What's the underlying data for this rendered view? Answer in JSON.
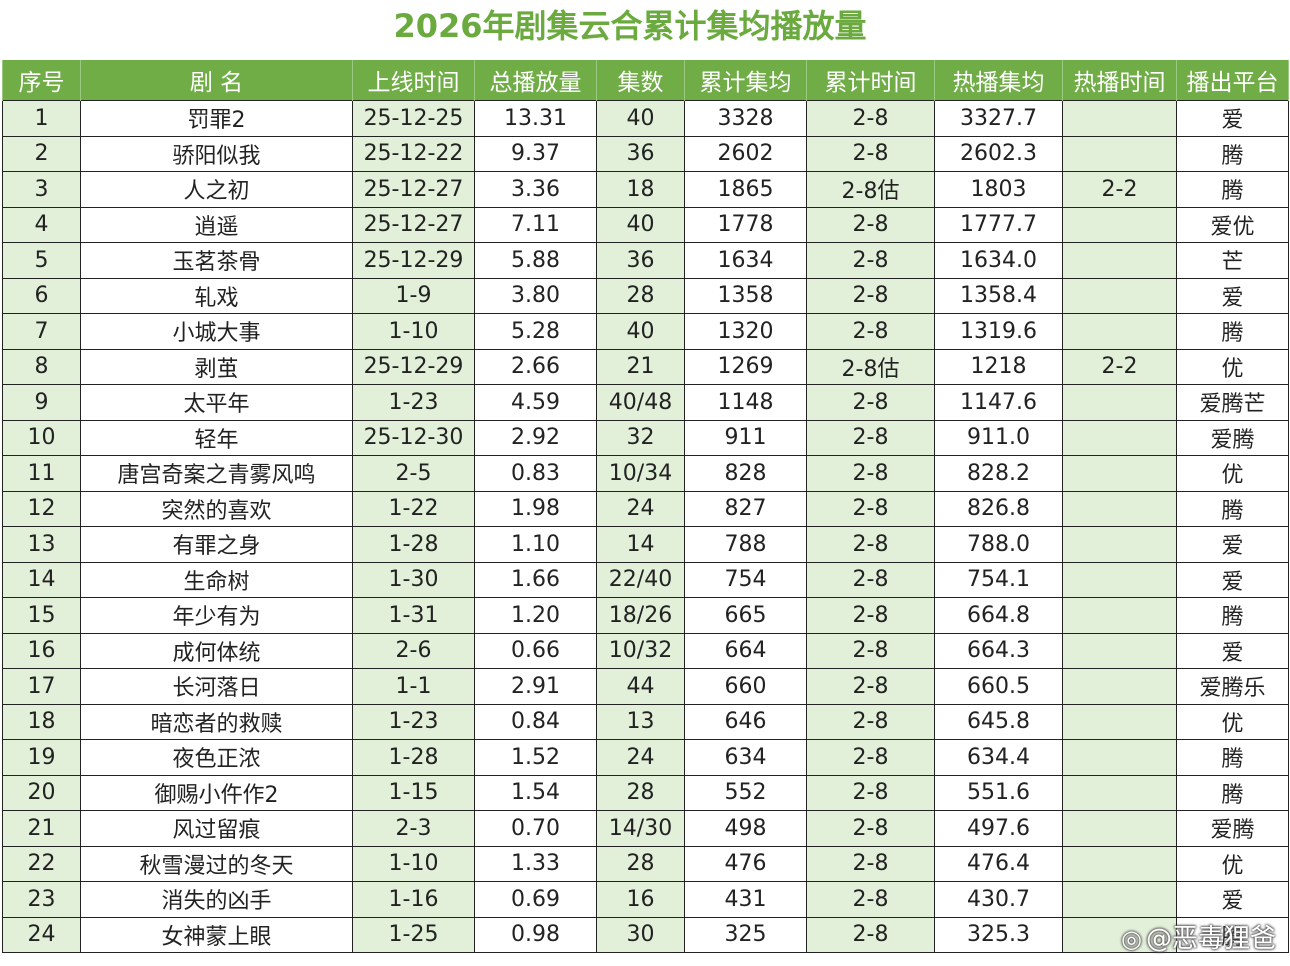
{
  "title": "2026年剧集云合累计集均播放量",
  "headers": [
    "序号",
    "剧 名",
    "上线时间",
    "总播放量",
    "集数",
    "累计集均",
    "累计时间",
    "热播集均",
    "热播时间",
    "播出平台"
  ],
  "rows": [
    [
      "1",
      "罚罪2",
      "25-12-25",
      "13.31",
      "40",
      "3328",
      "2-8",
      "3327.7",
      "",
      "爱"
    ],
    [
      "2",
      "骄阳似我",
      "25-12-22",
      "9.37",
      "36",
      "2602",
      "2-8",
      "2602.3",
      "",
      "腾"
    ],
    [
      "3",
      "人之初",
      "25-12-27",
      "3.36",
      "18",
      "1865",
      "2-8估",
      "1803",
      "2-2",
      "腾"
    ],
    [
      "4",
      "逍遥",
      "25-12-27",
      "7.11",
      "40",
      "1778",
      "2-8",
      "1777.7",
      "",
      "爱优"
    ],
    [
      "5",
      "玉茗茶骨",
      "25-12-29",
      "5.88",
      "36",
      "1634",
      "2-8",
      "1634.0",
      "",
      "芒"
    ],
    [
      "6",
      "轧戏",
      "1-9",
      "3.80",
      "28",
      "1358",
      "2-8",
      "1358.4",
      "",
      "爱"
    ],
    [
      "7",
      "小城大事",
      "1-10",
      "5.28",
      "40",
      "1320",
      "2-8",
      "1319.6",
      "",
      "腾"
    ],
    [
      "8",
      "剥茧",
      "25-12-29",
      "2.66",
      "21",
      "1269",
      "2-8估",
      "1218",
      "2-2",
      "优"
    ],
    [
      "9",
      "太平年",
      "1-23",
      "4.59",
      "40/48",
      "1148",
      "2-8",
      "1147.6",
      "",
      "爱腾芒"
    ],
    [
      "10",
      "轻年",
      "25-12-30",
      "2.92",
      "32",
      "911",
      "2-8",
      "911.0",
      "",
      "爱腾"
    ],
    [
      "11",
      "唐宫奇案之青雾风鸣",
      "2-5",
      "0.83",
      "10/34",
      "828",
      "2-8",
      "828.2",
      "",
      "优"
    ],
    [
      "12",
      "突然的喜欢",
      "1-22",
      "1.98",
      "24",
      "827",
      "2-8",
      "826.8",
      "",
      "腾"
    ],
    [
      "13",
      "有罪之身",
      "1-28",
      "1.10",
      "14",
      "788",
      "2-8",
      "788.0",
      "",
      "爱"
    ],
    [
      "14",
      "生命树",
      "1-30",
      "1.66",
      "22/40",
      "754",
      "2-8",
      "754.1",
      "",
      "爱"
    ],
    [
      "15",
      "年少有为",
      "1-31",
      "1.20",
      "18/26",
      "665",
      "2-8",
      "664.8",
      "",
      "腾"
    ],
    [
      "16",
      "成何体统",
      "2-6",
      "0.66",
      "10/32",
      "664",
      "2-8",
      "664.3",
      "",
      "爱"
    ],
    [
      "17",
      "长河落日",
      "1-1",
      "2.91",
      "44",
      "660",
      "2-8",
      "660.5",
      "",
      "爱腾乐"
    ],
    [
      "18",
      "暗恋者的救赎",
      "1-23",
      "0.84",
      "13",
      "646",
      "2-8",
      "645.8",
      "",
      "优"
    ],
    [
      "19",
      "夜色正浓",
      "1-28",
      "1.52",
      "24",
      "634",
      "2-8",
      "634.4",
      "",
      "腾"
    ],
    [
      "20",
      "御赐小仵作2",
      "1-15",
      "1.54",
      "28",
      "552",
      "2-8",
      "551.6",
      "",
      "腾"
    ],
    [
      "21",
      "风过留痕",
      "2-3",
      "0.70",
      "14/30",
      "498",
      "2-8",
      "497.6",
      "",
      "爱腾"
    ],
    [
      "22",
      "秋雪漫过的冬天",
      "1-10",
      "1.33",
      "28",
      "476",
      "2-8",
      "476.4",
      "",
      "优"
    ],
    [
      "23",
      "消失的凶手",
      "1-16",
      "0.69",
      "16",
      "431",
      "2-8",
      "430.7",
      "",
      "爱"
    ],
    [
      "24",
      "女神蒙上眼",
      "1-25",
      "0.98",
      "30",
      "325",
      "2-8",
      "325.3",
      "",
      "腾"
    ]
  ],
  "watermark": "@恶毒狸爸",
  "colors": {
    "header_bg": "#70ad47",
    "title": "#6aaa3e",
    "shaded_col": "#e2efd9"
  }
}
